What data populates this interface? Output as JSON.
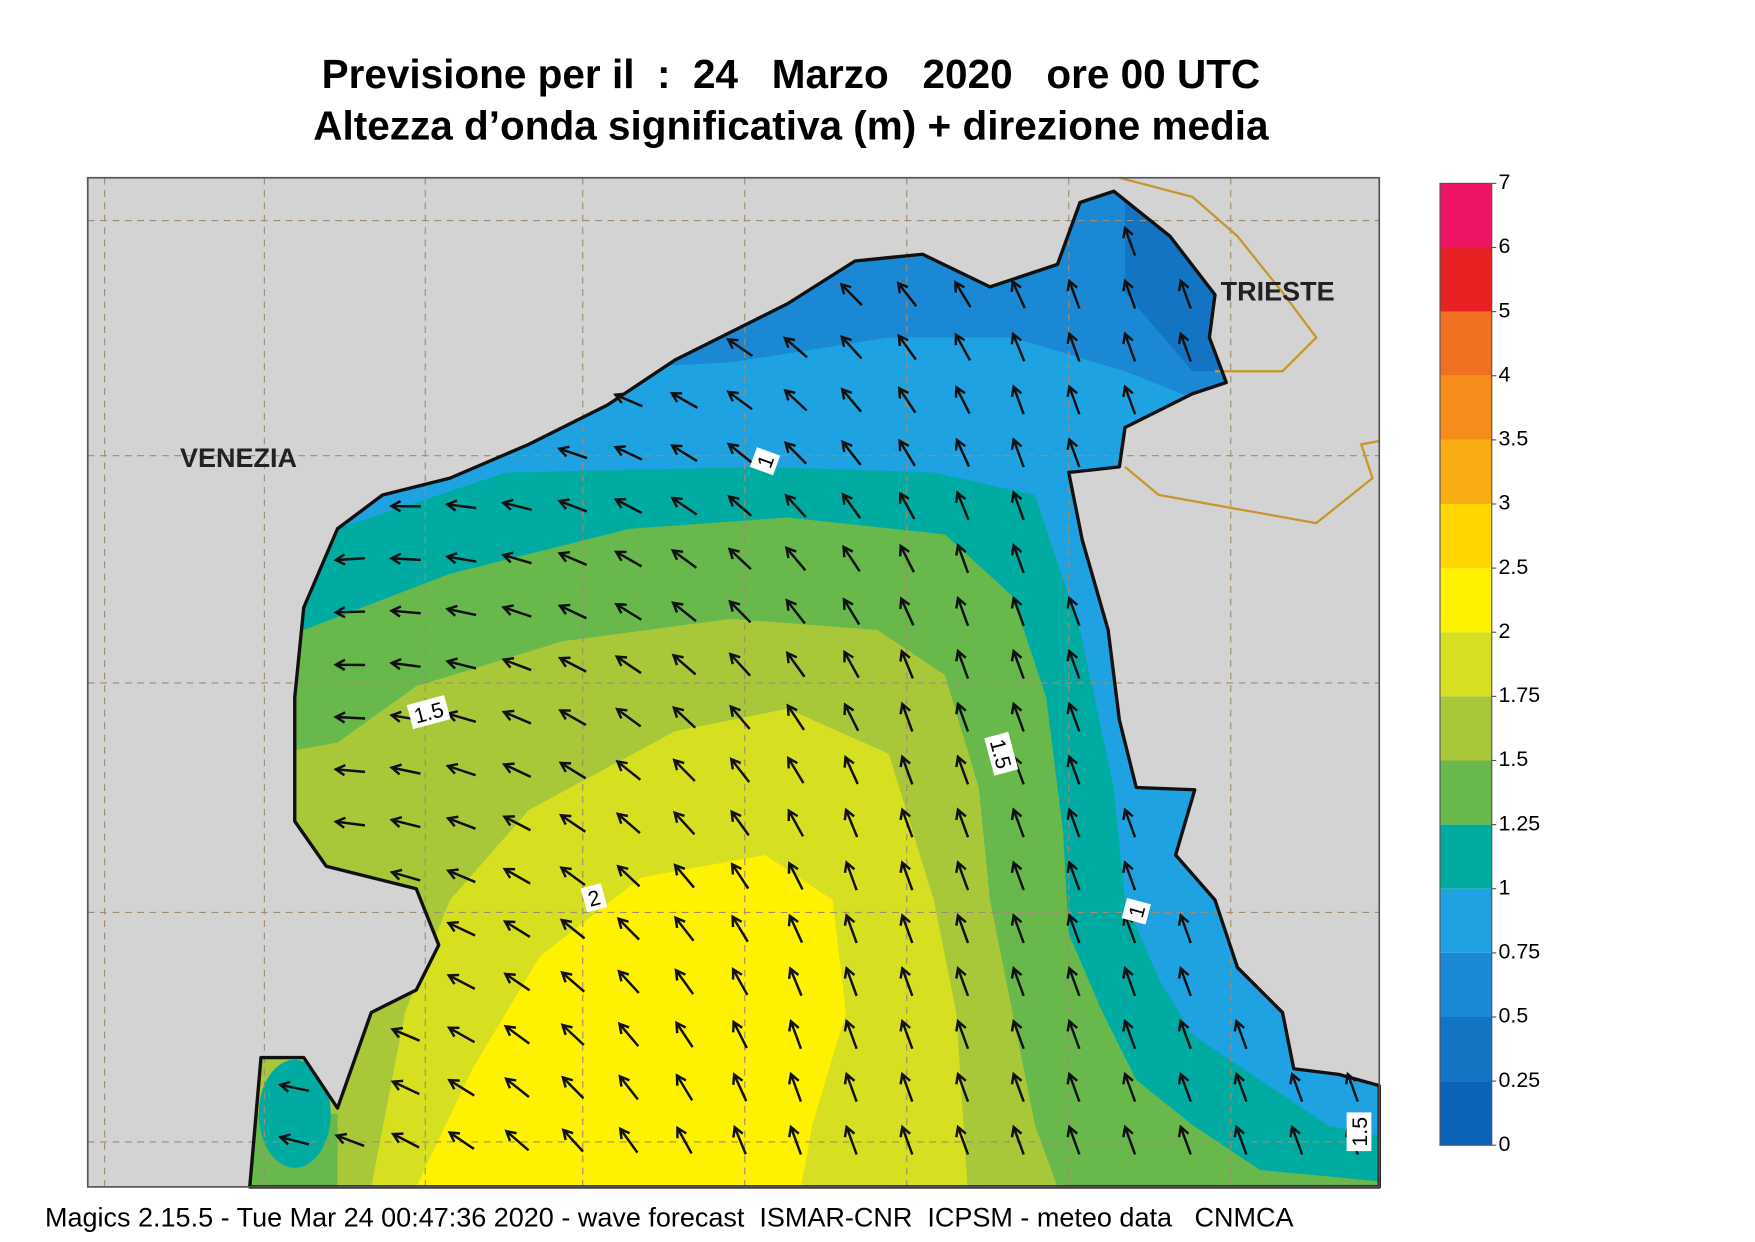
{
  "title": [
    "Previsione per il  :  24   Marzo   2020   ore 00 UTC",
    "Altezza d’onda significativa (m) + direzione media"
  ],
  "legend": {
    "ticks": [
      0,
      0.25,
      0.5,
      0.75,
      1,
      1.25,
      1.5,
      1.75,
      2,
      2.5,
      3,
      3.5,
      4,
      5,
      6,
      7
    ],
    "colors": [
      "#0b62b6",
      "#1474c4",
      "#1a88d4",
      "#1ea2e2",
      "#00aca2",
      "#68b84c",
      "#a8c83a",
      "#d6e020",
      "#fff200",
      "#ffd600",
      "#f8ae12",
      "#f68c1a",
      "#f07022",
      "#e82222",
      "#ee1466"
    ]
  },
  "places": [
    "VENEZIA",
    "TRIESTE"
  ],
  "contour_labels": [
    "1",
    "1.5",
    "1.5",
    "2",
    "1",
    "1.5"
  ],
  "footer": "Magics 2.15.5 - Tue Mar 24 00:47:36 2020 - wave forecast  ISMAR-CNR  ICPSM - meteo data   CNMCA"
}
